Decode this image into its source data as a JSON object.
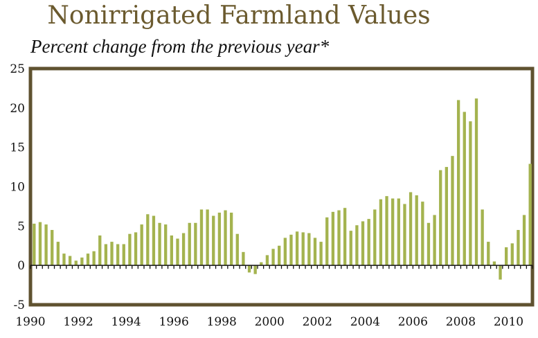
{
  "title": "Nonirrigated Farmland Values",
  "subtitle": "Percent change from the previous year*",
  "colors": {
    "bar": "#a4b34f",
    "frame": "#5f5230",
    "axis": "#111111",
    "title": "#6b5a2e"
  },
  "chart_data": {
    "type": "bar",
    "title": "Nonirrigated Farmland Values",
    "subtitle": "Percent change from the previous year*",
    "xlabel": "",
    "ylabel": "",
    "ylim": [
      -5,
      25
    ],
    "yticks": [
      25,
      20,
      15,
      10,
      5,
      0,
      -5
    ],
    "xticks": [
      "1990",
      "1992",
      "1994",
      "1996",
      "1998",
      "2000",
      "2002",
      "2004",
      "2006",
      "2008",
      "2010"
    ],
    "grid": false,
    "frequency": "quarterly",
    "x_start": "1990 Q1",
    "values": [
      5.3,
      5.5,
      5.2,
      4.5,
      3.0,
      1.5,
      1.2,
      0.6,
      1.0,
      1.5,
      1.8,
      3.8,
      2.7,
      3.0,
      2.7,
      2.7,
      4.0,
      4.2,
      5.2,
      6.5,
      6.3,
      5.4,
      5.2,
      3.8,
      3.4,
      4.1,
      5.4,
      5.4,
      7.1,
      7.1,
      6.3,
      6.7,
      7.0,
      6.7,
      4.0,
      1.7,
      -0.9,
      -1.1,
      0.4,
      1.3,
      2.1,
      2.5,
      3.5,
      3.9,
      4.3,
      4.2,
      4.1,
      3.5,
      3.0,
      6.1,
      6.8,
      7.0,
      7.3,
      4.4,
      5.1,
      5.6,
      5.9,
      7.1,
      8.4,
      8.8,
      8.5,
      8.5,
      7.8,
      9.3,
      8.9,
      8.1,
      5.4,
      6.4,
      12.1,
      12.5,
      13.9,
      21.0,
      19.5,
      18.3,
      21.2,
      7.1,
      3.0,
      0.5,
      -1.8,
      2.3,
      2.8,
      4.5,
      6.4,
      12.9
    ]
  }
}
